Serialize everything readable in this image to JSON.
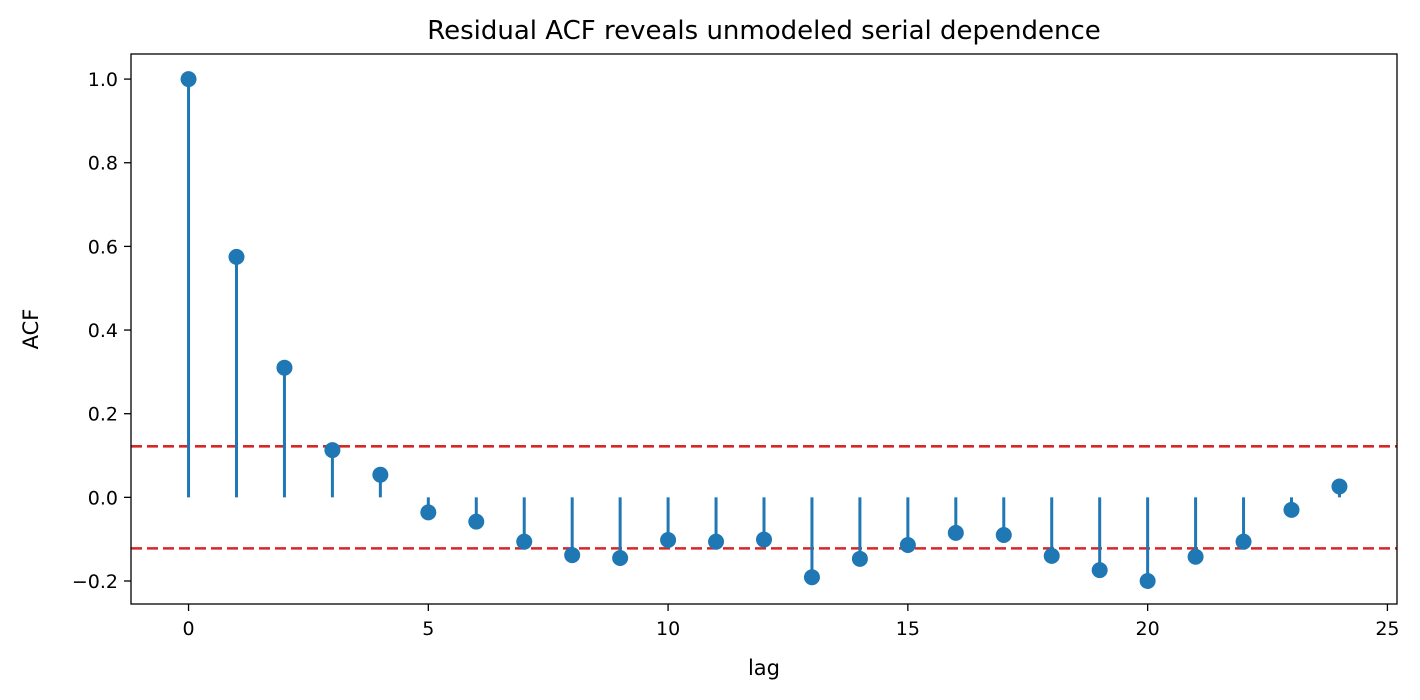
{
  "chart_data": {
    "type": "stem",
    "title": "Residual ACF reveals unmodeled serial dependence",
    "xlabel": "lag",
    "ylabel": "ACF",
    "xlim": [
      -1.2,
      25.2
    ],
    "ylim": [
      -0.255,
      1.06
    ],
    "xticks": [
      0,
      5,
      10,
      15,
      20,
      25
    ],
    "xtick_labels": [
      "0",
      "5",
      "10",
      "15",
      "20",
      "25"
    ],
    "yticks": [
      -0.2,
      0.0,
      0.2,
      0.4,
      0.6,
      0.8,
      1.0
    ],
    "ytick_labels": [
      "−0.2",
      "0.0",
      "0.2",
      "0.4",
      "0.6",
      "0.8",
      "1.0"
    ],
    "grid": false,
    "series_color": "#1f77b4",
    "confidence_color": "#d62728",
    "confidence_band": [
      -0.122,
      0.122
    ],
    "x": [
      0,
      1,
      2,
      3,
      4,
      5,
      6,
      7,
      8,
      9,
      10,
      11,
      12,
      13,
      14,
      15,
      16,
      17,
      18,
      19,
      20,
      21,
      22,
      23,
      24
    ],
    "values": [
      1.0,
      0.575,
      0.31,
      0.113,
      0.054,
      -0.036,
      -0.058,
      -0.106,
      -0.138,
      -0.145,
      -0.102,
      -0.106,
      -0.101,
      -0.191,
      -0.147,
      -0.114,
      -0.085,
      -0.09,
      -0.14,
      -0.174,
      -0.2,
      -0.142,
      -0.106,
      -0.03,
      0.026
    ]
  }
}
